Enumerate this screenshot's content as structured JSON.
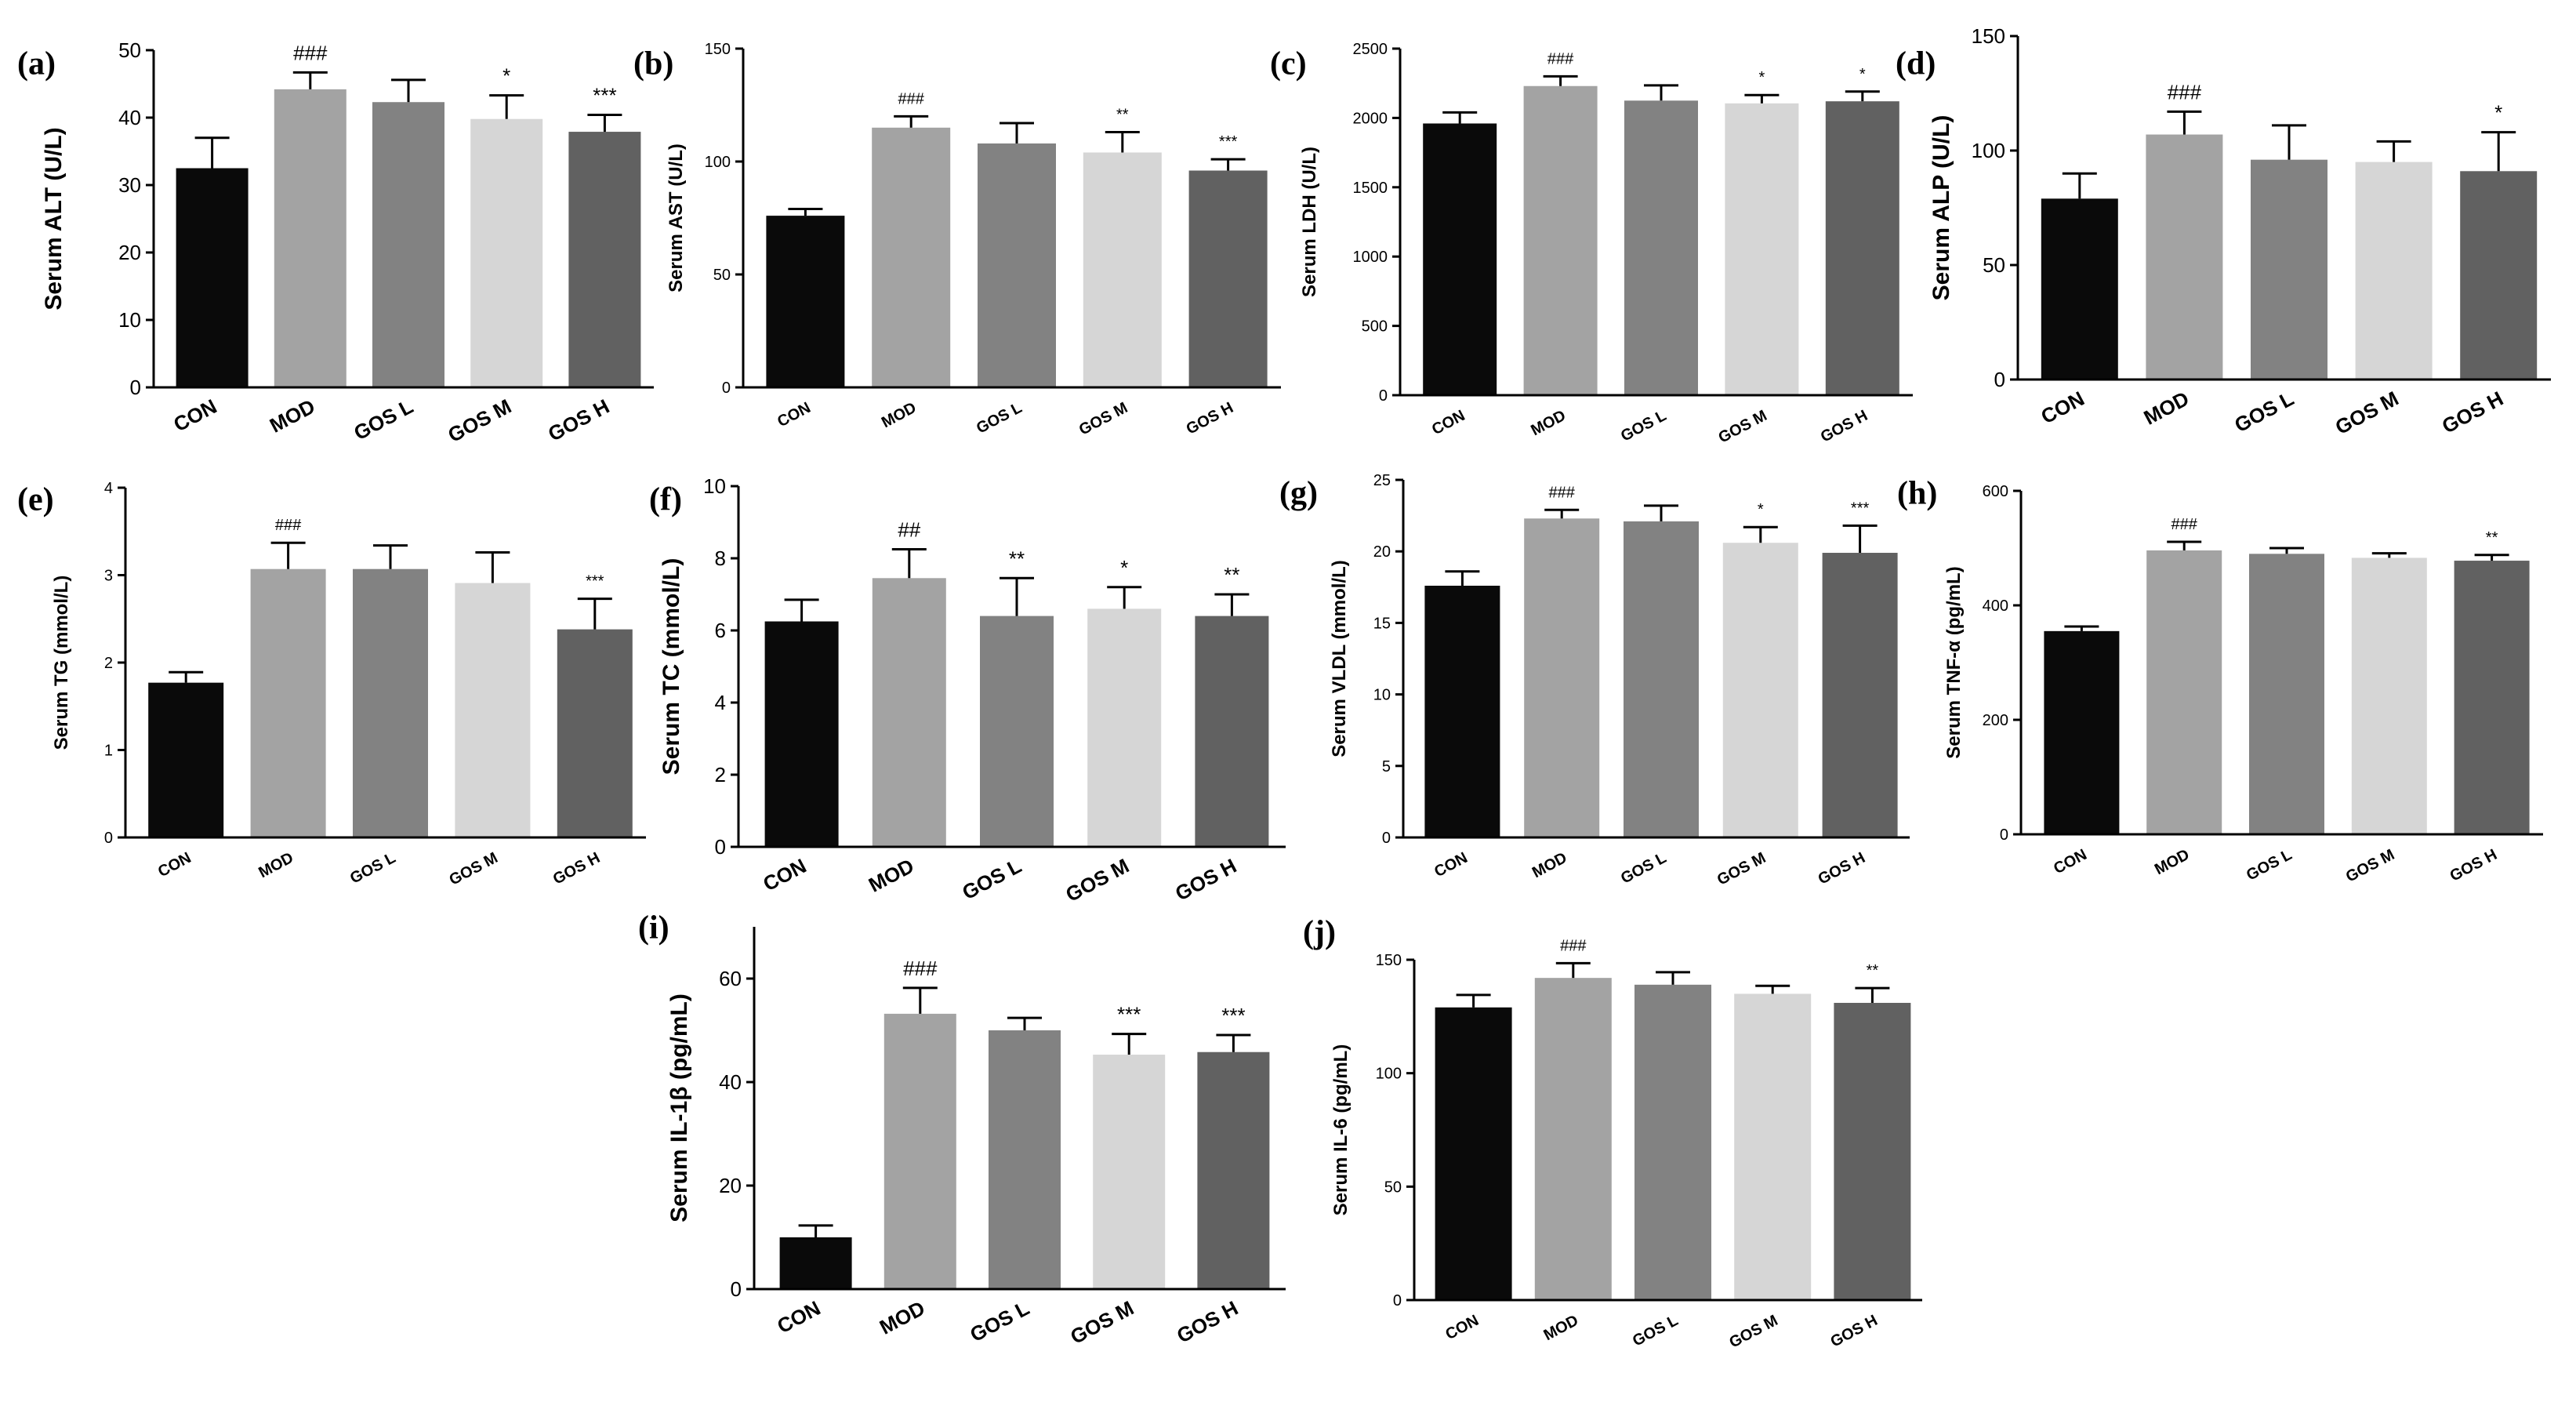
{
  "figure": {
    "categories": [
      "CON",
      "MOD",
      "GOS L",
      "GOS M",
      "GOS H"
    ],
    "colors": [
      "#0a0a0a",
      "#a3a3a3",
      "#828282",
      "#d6d6d6",
      "#616161"
    ]
  },
  "chart_data": [
    {
      "id": "a",
      "label": "(a)",
      "type": "bar",
      "ylabel": "Serum ALT (U/L)",
      "ylim": [
        0,
        50
      ],
      "yticks": [
        0,
        10,
        20,
        30,
        40,
        50
      ],
      "categories": [
        "CON",
        "MOD",
        "GOS L",
        "GOS M",
        "GOS H"
      ],
      "values": [
        32.5,
        44.2,
        42.3,
        39.8,
        37.9
      ],
      "errors": [
        4.5,
        2.5,
        3.3,
        3.5,
        2.5
      ],
      "annotations": [
        "",
        "###",
        "",
        "*",
        "***"
      ]
    },
    {
      "id": "b",
      "label": "(b)",
      "type": "bar",
      "ylabel": "Serum AST (U/L)",
      "ylim": [
        0,
        150
      ],
      "yticks": [
        0,
        50,
        100,
        150
      ],
      "categories": [
        "CON",
        "MOD",
        "GOS L",
        "GOS M",
        "GOS H"
      ],
      "values": [
        76,
        115,
        108,
        104,
        96
      ],
      "errors": [
        3,
        5,
        9,
        9,
        5
      ],
      "annotations": [
        "",
        "###",
        "",
        "**",
        "***"
      ]
    },
    {
      "id": "c",
      "label": "(c)",
      "type": "bar",
      "ylabel": "Serum LDH (U/L)",
      "ylim": [
        0,
        2500
      ],
      "yticks": [
        0,
        500,
        1000,
        1500,
        2000,
        2500
      ],
      "categories": [
        "CON",
        "MOD",
        "GOS L",
        "GOS M",
        "GOS H"
      ],
      "values": [
        1960,
        2230,
        2125,
        2105,
        2120
      ],
      "errors": [
        80,
        70,
        110,
        60,
        70
      ],
      "annotations": [
        "",
        "###",
        "",
        "*",
        "*"
      ]
    },
    {
      "id": "d",
      "label": "(d)",
      "type": "bar",
      "ylabel": "Serum ALP (U/L)",
      "ylim": [
        0,
        150
      ],
      "yticks": [
        0,
        50,
        100,
        150
      ],
      "categories": [
        "CON",
        "MOD",
        "GOS L",
        "GOS M",
        "GOS H"
      ],
      "values": [
        79,
        107,
        96,
        95,
        91
      ],
      "errors": [
        11,
        10,
        15,
        9,
        17
      ],
      "annotations": [
        "",
        "###",
        "",
        "",
        "*"
      ]
    },
    {
      "id": "e",
      "label": "(e)",
      "type": "bar",
      "ylabel": "Serum TG (mmol/L)",
      "ylim": [
        0,
        4
      ],
      "yticks": [
        0,
        1,
        2,
        3,
        4
      ],
      "categories": [
        "CON",
        "MOD",
        "GOS L",
        "GOS M",
        "GOS H"
      ],
      "values": [
        1.77,
        3.07,
        3.07,
        2.91,
        2.38
      ],
      "errors": [
        0.12,
        0.3,
        0.27,
        0.35,
        0.35
      ],
      "annotations": [
        "",
        "###",
        "",
        "",
        "***"
      ]
    },
    {
      "id": "f",
      "label": "(f)",
      "type": "bar",
      "ylabel": "Serum TC (mmol/L)",
      "ylim": [
        0,
        10
      ],
      "yticks": [
        0,
        2,
        4,
        6,
        8,
        10
      ],
      "categories": [
        "CON",
        "MOD",
        "GOS L",
        "GOS M",
        "GOS H"
      ],
      "values": [
        6.25,
        7.45,
        6.4,
        6.6,
        6.4
      ],
      "errors": [
        0.6,
        0.8,
        1.05,
        0.6,
        0.6
      ],
      "annotations": [
        "",
        "##",
        "**",
        "*",
        "**"
      ]
    },
    {
      "id": "g",
      "label": "(g)",
      "type": "bar",
      "ylabel": "Serum VLDL (mmol/L)",
      "ylim": [
        0,
        25
      ],
      "yticks": [
        0,
        5,
        10,
        15,
        20,
        25
      ],
      "categories": [
        "CON",
        "MOD",
        "GOS L",
        "GOS M",
        "GOS H"
      ],
      "values": [
        17.6,
        22.3,
        22.1,
        20.6,
        19.9
      ],
      "errors": [
        1,
        0.6,
        1.1,
        1.1,
        1.9
      ],
      "annotations": [
        "",
        "###",
        "",
        "*",
        "***"
      ]
    },
    {
      "id": "h",
      "label": "(h)",
      "type": "bar",
      "ylabel": "Serum TNF-α (pg/mL)",
      "ylim": [
        0,
        600
      ],
      "yticks": [
        0,
        200,
        400,
        600
      ],
      "categories": [
        "CON",
        "MOD",
        "GOS L",
        "GOS M",
        "GOS H"
      ],
      "values": [
        355,
        496,
        490,
        483,
        478
      ],
      "errors": [
        8,
        15,
        10,
        8,
        10
      ],
      "annotations": [
        "",
        "###",
        "",
        "",
        "**"
      ]
    },
    {
      "id": "i",
      "label": "(i)",
      "type": "bar",
      "ylabel": "Serum IL-1β (pg/mL)",
      "ylim": [
        0,
        70
      ],
      "yticks": [
        0,
        20,
        40,
        60
      ],
      "categories": [
        "CON",
        "MOD",
        "GOS L",
        "GOS M",
        "GOS H"
      ],
      "values": [
        10,
        53.2,
        50,
        45.3,
        45.8
      ],
      "errors": [
        2.3,
        5,
        2.4,
        4,
        3.3
      ],
      "annotations": [
        "",
        "###",
        "",
        "***",
        "***"
      ]
    },
    {
      "id": "j",
      "label": "(j)",
      "type": "bar",
      "ylabel": "Serum IL-6 (pg/mL)",
      "ylim": [
        0,
        150
      ],
      "yticks": [
        0,
        50,
        100,
        150
      ],
      "categories": [
        "CON",
        "MOD",
        "GOS L",
        "GOS M",
        "GOS H"
      ],
      "values": [
        129,
        142,
        139,
        135,
        131
      ],
      "errors": [
        5.5,
        6.5,
        5.5,
        3.5,
        6.5
      ],
      "annotations": [
        "",
        "###",
        "",
        "",
        "**"
      ]
    }
  ]
}
